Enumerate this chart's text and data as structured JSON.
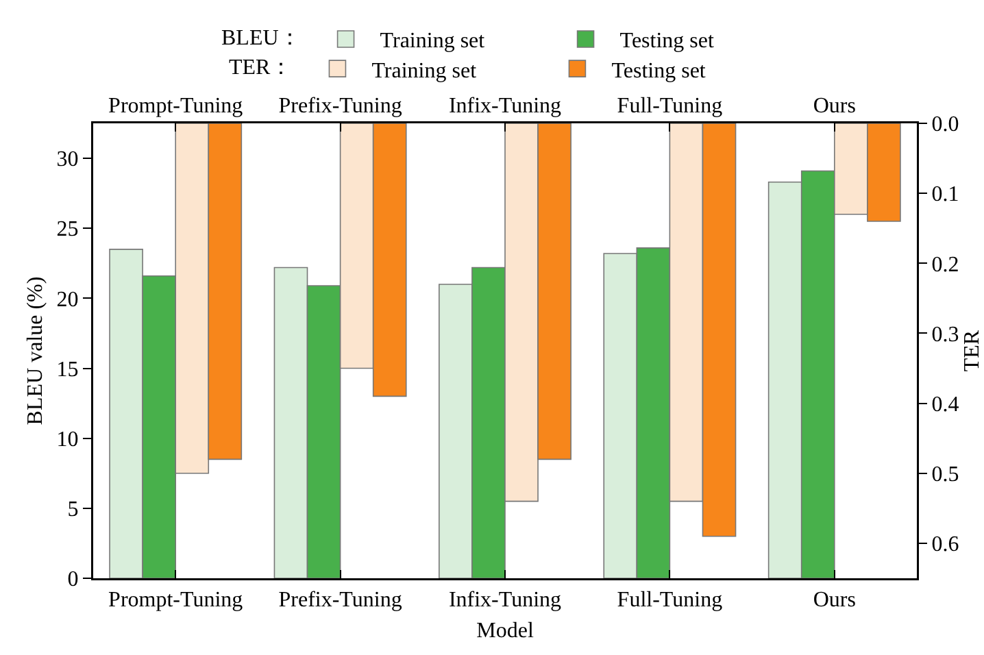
{
  "chart_data": {
    "type": "bar",
    "xlabel": "Model",
    "ylabel": "BLEU value (%)",
    "y2label": "TER",
    "categories": [
      "Prompt-Tuning",
      "Prefix-Tuning",
      "Infix-Tuning",
      "Full-Tuning",
      "Ours"
    ],
    "series": [
      {
        "name": "Training set",
        "color": "#d9eedb",
        "values": [
          23.5,
          22.2,
          21.0,
          23.2,
          28.3
        ]
      },
      {
        "name": "Testing set",
        "color": "#48b04b",
        "values": [
          21.6,
          20.9,
          22.2,
          23.6,
          29.1
        ]
      },
      {
        "name": "Training set",
        "color": "#fce5cf",
        "axis": "y2",
        "values": [
          0.5,
          0.35,
          0.54,
          0.54,
          0.13
        ]
      },
      {
        "name": "Testing set",
        "color": "#f7861b",
        "axis": "y2",
        "values": [
          0.48,
          0.39,
          0.48,
          0.59,
          0.14
        ]
      }
    ],
    "annotations": [
      "BLEU：",
      "TER："
    ],
    "ylim": [
      0,
      32.5
    ],
    "yticks": [
      0,
      5,
      10,
      15,
      20,
      25,
      30
    ],
    "y2lim": [
      0.65,
      0
    ],
    "y2ticks": [
      {
        "value": 0,
        "label": "0.0"
      },
      0.1,
      0.2,
      0.3,
      0.4,
      0.5,
      0.6
    ],
    "grid": false,
    "legend": "top"
  }
}
